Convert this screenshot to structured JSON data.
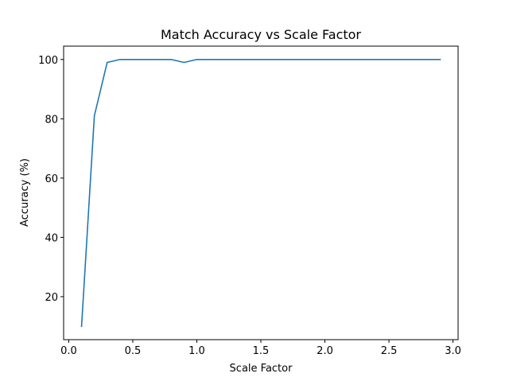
{
  "chart_data": {
    "type": "line",
    "title": "Match Accuracy vs Scale Factor",
    "xlabel": "Scale Factor",
    "ylabel": "Accuracy (%)",
    "xlim": [
      -0.04,
      3.04
    ],
    "ylim": [
      5.5,
      104.5
    ],
    "xticks": [
      0.0,
      0.5,
      1.0,
      1.5,
      2.0,
      2.5,
      3.0
    ],
    "xtick_labels": [
      "0.0",
      "0.5",
      "1.0",
      "1.5",
      "2.0",
      "2.5",
      "3.0"
    ],
    "yticks": [
      20,
      40,
      60,
      80,
      100
    ],
    "ytick_labels": [
      "20",
      "40",
      "60",
      "80",
      "100"
    ],
    "grid": false,
    "series": [
      {
        "color": "#1f77b4",
        "x": [
          0.1,
          0.2,
          0.3,
          0.4,
          0.5,
          0.6,
          0.7,
          0.8,
          0.9,
          1.0,
          1.1,
          1.2,
          1.3,
          1.4,
          1.5,
          1.6,
          1.7,
          1.8,
          1.9,
          2.0,
          2.1,
          2.2,
          2.3,
          2.4,
          2.5,
          2.6,
          2.7,
          2.8,
          2.9
        ],
        "y": [
          10,
          81,
          99,
          100,
          100,
          100,
          100,
          100,
          99,
          100,
          100,
          100,
          100,
          100,
          100,
          100,
          100,
          100,
          100,
          100,
          100,
          100,
          100,
          100,
          100,
          100,
          100,
          100,
          100
        ]
      }
    ]
  }
}
